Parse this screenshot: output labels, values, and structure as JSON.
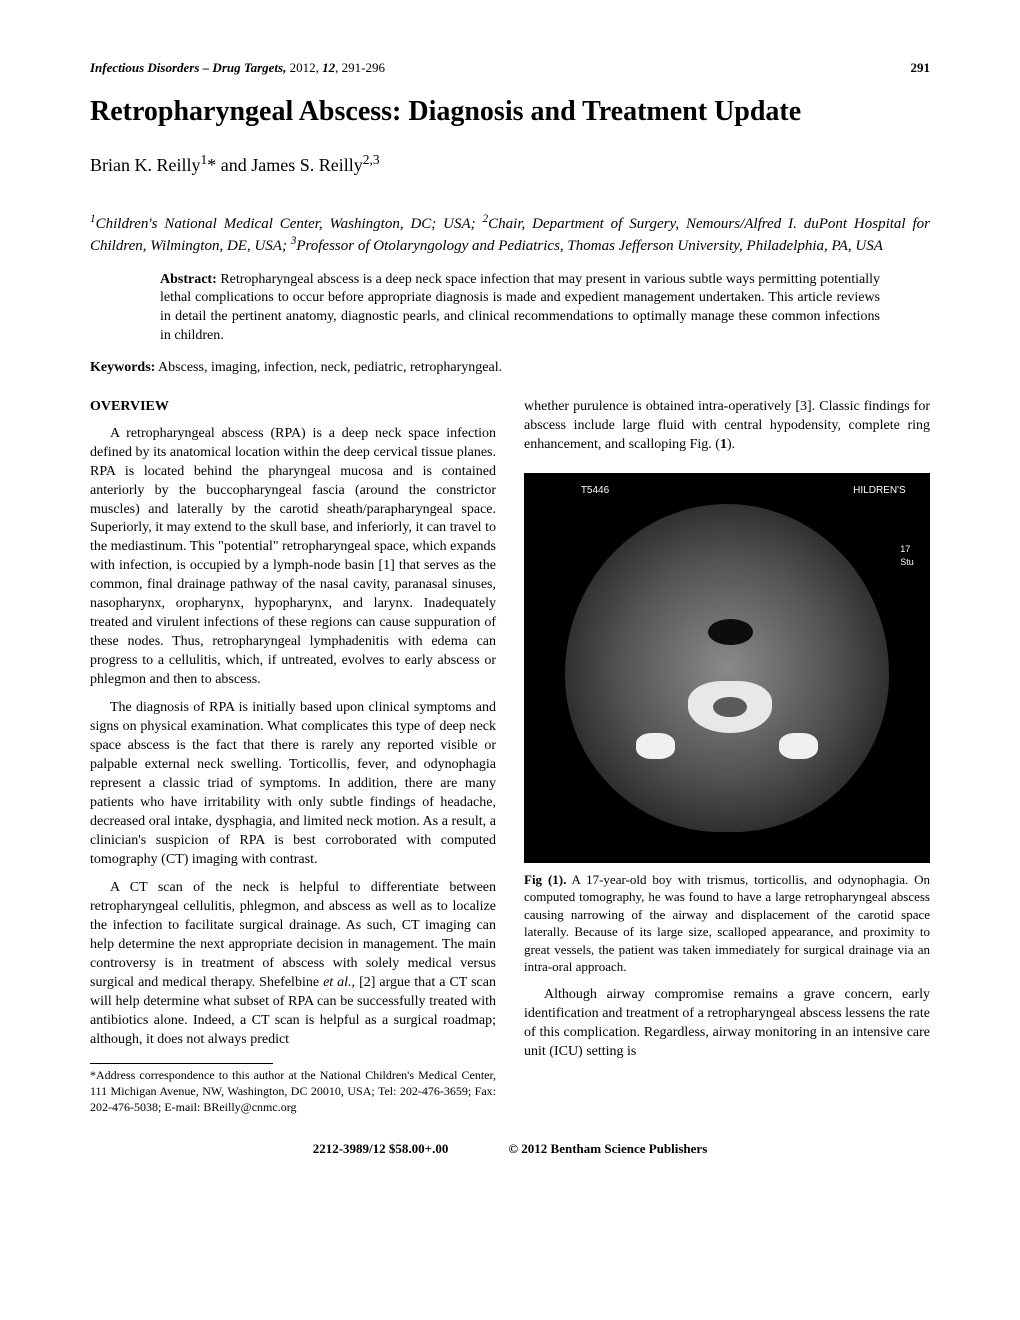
{
  "header": {
    "journal_italic": "Infectious Disorders – Drug Targets,",
    "year": " 2012, ",
    "volume": "12",
    "pages": ", 291-296",
    "pagenum": "291"
  },
  "title": "Retropharyngeal Abscess: Diagnosis and Treatment Update",
  "authors_html": "Brian K. Reilly<sup>1</sup>* and James S. Reilly<sup>2,3</sup>",
  "affiliations_html": "<sup>1</sup>Children's National Medical Center, Washington, DC; USA; <sup>2</sup>Chair, Department of Surgery, Nemours/Alfred I. duPont Hospital for Children, Wilmington, DE, USA; <sup>3</sup>Professor of Otolaryngology and Pediatrics, Thomas Jefferson University, Philadelphia, PA, USA",
  "abstract": {
    "label": "Abstract:",
    "text": " Retropharyngeal abscess is a deep neck space infection that may present in various subtle ways permitting potentially lethal complications to occur before appropriate diagnosis is made and expedient management undertaken. This article reviews in detail the pertinent anatomy, diagnostic pearls, and clinical recommendations to optimally manage these common infections in children."
  },
  "keywords": {
    "label": "Keywords:",
    "text": " Abscess, imaging, infection, neck, pediatric, retropharyngeal."
  },
  "left_column": {
    "heading": "OVERVIEW",
    "p1": "A retropharyngeal abscess (RPA) is a deep neck space infection defined by its anatomical location within the deep cervical tissue planes. RPA is located behind the pharyngeal mucosa and is contained anteriorly by the buccopharyngeal fascia (around the constrictor muscles) and laterally by the carotid sheath/parapharyngeal space. Superiorly, it may extend to the skull base, and inferiorly, it can travel to the mediastinum. This \"potential\" retropharyngeal space, which expands with infection, is occupied by a lymph-node basin [1] that serves as the common, final drainage pathway of the nasal cavity, paranasal sinuses, nasopharynx, oropharynx, hypopharynx, and larynx. Inadequately treated and virulent infections of these regions can cause suppuration of these nodes. Thus, retropharyngeal lymphadenitis with edema can progress to a cellulitis, which, if untreated, evolves to early abscess or phlegmon and then to abscess.",
    "p2": "The diagnosis of RPA is initially based upon clinical symptoms and signs on physical examination. What complicates this type of deep neck space abscess is the fact that there is rarely any reported visible or palpable external neck swelling. Torticollis, fever, and odynophagia represent a classic triad of symptoms. In addition, there are many patients who have irritability with only subtle findings of headache, decreased oral intake, dysphagia, and limited neck motion. As a result, a clinician's suspicion of RPA is best corroborated with computed tomography (CT) imaging with contrast.",
    "p3": "A CT scan of the neck is helpful to differentiate between retropharyngeal cellulitis, phlegmon, and abscess as well as to localize the infection to facilitate surgical drainage. As such, CT imaging can help determine the next appropriate decision in management. The main controversy is in treatment of abscess with solely medical versus surgical and medical therapy. Shefelbine et al., [2] argue that a CT scan will help determine what subset of RPA can be successfully treated with antibiotics alone. Indeed, a CT scan is helpful as a surgical roadmap; although, it does not always predict",
    "footnote": "*Address correspondence to this author at the National Children's Medical Center, 111 Michigan Avenue, NW, Washington, DC 20010, USA; Tel: 202-476-3659; Fax: 202-476-5038; E-mail: BReilly@cnmc.org"
  },
  "right_column": {
    "p1_html": "whether purulence is obtained intra-operatively [3]. Classic findings for abscess include large fluid with central hypodensity, complete ring enhancement, and scalloping Fig. (<b>1</b>).",
    "ct_overlay": {
      "label_left": "T5446",
      "label_right": "HILDREN'S",
      "side_top": "17",
      "side_bottom": "Stu"
    },
    "figcap_label": "Fig (1).",
    "figcap_text": " A 17-year-old boy with trismus, torticollis, and odynophagia. On computed tomography, he was found to have a large retropharyngeal abscess causing narrowing of the airway and displacement of the carotid space laterally. Because of its large size, scalloped appearance, and proximity to great vessels, the patient was taken immediately for surgical drainage via an intra-oral approach.",
    "p2": "Although airway compromise remains a grave concern, early identification and treatment of a retropharyngeal abscess lessens the rate of this complication. Regardless, airway monitoring in an intensive care unit (ICU) setting is"
  },
  "footer": {
    "issn": "2212-3989/12 $58.00+.00",
    "copyright": "© 2012 Bentham Science Publishers"
  }
}
